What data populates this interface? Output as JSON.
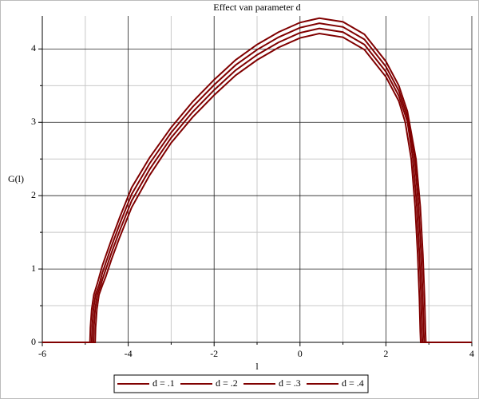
{
  "chart_data": {
    "type": "line",
    "title": "Effect van parameter d",
    "x_label": "l",
    "y_label": "G(l)",
    "xlim": [
      -6,
      4
    ],
    "ylim": [
      0,
      4.45
    ],
    "xticks": [
      -6,
      -4,
      -2,
      0,
      2,
      4
    ],
    "yticks": [
      0,
      1,
      2,
      3,
      4
    ],
    "xminor": [
      -5,
      -3,
      -1,
      1,
      3
    ],
    "yminor": [
      0.5,
      1.5,
      2.5,
      3.5
    ],
    "grid": true,
    "legend": "bottom",
    "series": [
      {
        "name": "d = .1",
        "color": "#800000",
        "x": [
          -6,
          -4.77,
          -4.76,
          -4.73,
          -4.68,
          -4.6,
          -4.52,
          -4.39,
          -4.2,
          -3.92,
          -3.5,
          -3,
          -2.5,
          -2,
          -1.5,
          -1,
          -0.5,
          0,
          0.45,
          1,
          1.5,
          2,
          2.3,
          2.45,
          2.59,
          2.68,
          2.74,
          2.78,
          2.8,
          2.81,
          4
        ],
        "values": [
          0,
          0,
          0.2,
          0.45,
          0.65,
          0.78,
          0.9,
          1.13,
          1.43,
          1.84,
          2.28,
          2.72,
          3.07,
          3.37,
          3.64,
          3.85,
          4.02,
          4.15,
          4.21,
          4.16,
          3.99,
          3.62,
          3.29,
          3.0,
          2.5,
          1.85,
          1.2,
          0.6,
          0.15,
          0,
          0
        ]
      },
      {
        "name": "d = .2",
        "color": "#800000",
        "x": [
          -6,
          -4.81,
          -4.8,
          -4.77,
          -4.72,
          -4.64,
          -4.6,
          -4.39,
          -4.2,
          -3.92,
          -3.5,
          -3,
          -2.5,
          -2,
          -1.5,
          -1,
          -0.5,
          0,
          0.45,
          1,
          1.5,
          2,
          2.3,
          2.5,
          2.63,
          2.72,
          2.78,
          2.82,
          2.84,
          2.85,
          4
        ],
        "values": [
          0,
          0,
          0.2,
          0.45,
          0.65,
          0.78,
          0.86,
          1.22,
          1.52,
          1.93,
          2.36,
          2.79,
          3.14,
          3.44,
          3.71,
          3.92,
          4.09,
          4.22,
          4.28,
          4.23,
          4.06,
          3.69,
          3.36,
          3.01,
          2.5,
          1.85,
          1.2,
          0.6,
          0.15,
          0,
          0
        ]
      },
      {
        "name": "d = .3",
        "color": "#800000",
        "x": [
          -6,
          -4.85,
          -4.84,
          -4.81,
          -4.76,
          -4.68,
          -4.6,
          -4.39,
          -4.2,
          -3.92,
          -3.5,
          -3,
          -2.5,
          -2,
          -1.5,
          -1,
          -0.5,
          0,
          0.45,
          1,
          1.5,
          2,
          2.3,
          2.5,
          2.67,
          2.76,
          2.82,
          2.86,
          2.88,
          2.89,
          4
        ],
        "values": [
          0,
          0,
          0.2,
          0.45,
          0.65,
          0.78,
          0.95,
          1.31,
          1.61,
          2.02,
          2.44,
          2.86,
          3.21,
          3.51,
          3.78,
          3.99,
          4.16,
          4.29,
          4.35,
          4.3,
          4.13,
          3.76,
          3.43,
          3.08,
          2.5,
          1.85,
          1.2,
          0.6,
          0.15,
          0,
          0
        ]
      },
      {
        "name": "d = .4",
        "color": "#800000",
        "x": [
          -6,
          -4.89,
          -4.88,
          -4.85,
          -4.8,
          -4.72,
          -4.6,
          -4.39,
          -4.2,
          -3.92,
          -3.5,
          -3,
          -2.5,
          -2,
          -1.5,
          -1,
          -0.5,
          0,
          0.45,
          1,
          1.5,
          2,
          2.3,
          2.5,
          2.7,
          2.8,
          2.86,
          2.9,
          2.92,
          2.93,
          4
        ],
        "values": [
          0,
          0,
          0.2,
          0.45,
          0.65,
          0.8,
          1.05,
          1.4,
          1.7,
          2.11,
          2.52,
          2.93,
          3.28,
          3.58,
          3.85,
          4.06,
          4.23,
          4.36,
          4.42,
          4.37,
          4.2,
          3.83,
          3.5,
          3.15,
          2.5,
          1.85,
          1.2,
          0.6,
          0.15,
          0,
          0
        ]
      }
    ]
  }
}
